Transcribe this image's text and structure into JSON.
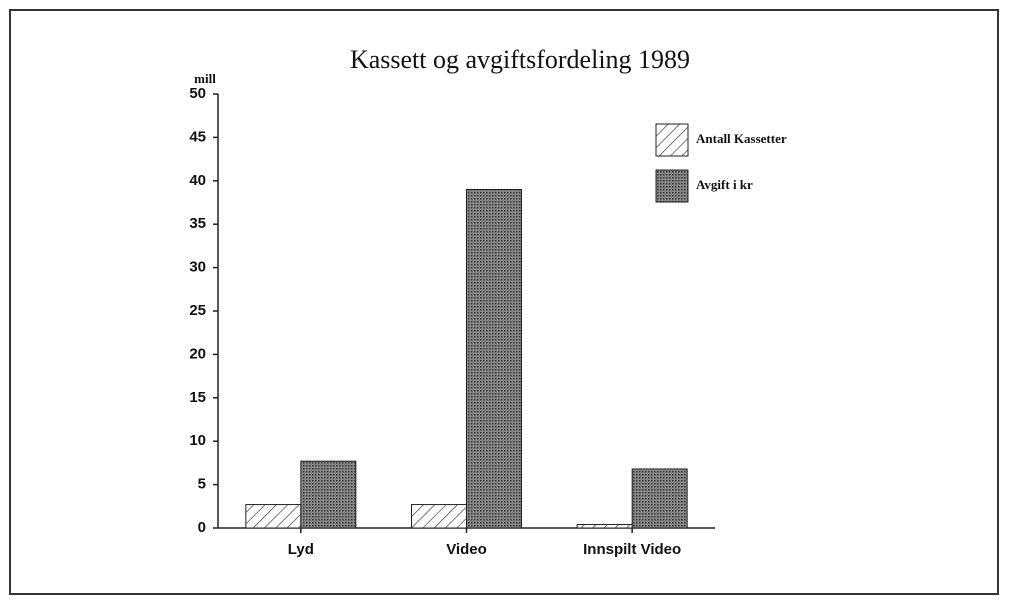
{
  "chart_data": {
    "type": "bar",
    "title": "Kassett og avgiftsfordeling 1989",
    "y_label": "mill",
    "categories": [
      "Lyd",
      "Video",
      "Innspilt Video"
    ],
    "series": [
      {
        "name": "Antall Kassetter",
        "color": "#ffffff",
        "pattern": "hatch",
        "values": [
          2.7,
          2.7,
          0.4
        ]
      },
      {
        "name": "Avgift i kr",
        "color": "#6a6a6a",
        "pattern": "dots",
        "values": [
          7.7,
          39,
          6.8
        ]
      }
    ],
    "ylim": [
      0,
      50
    ],
    "yticks": [
      0,
      5,
      10,
      15,
      20,
      25,
      30,
      35,
      40,
      45,
      50
    ],
    "grid": false,
    "legend": "upper right"
  }
}
